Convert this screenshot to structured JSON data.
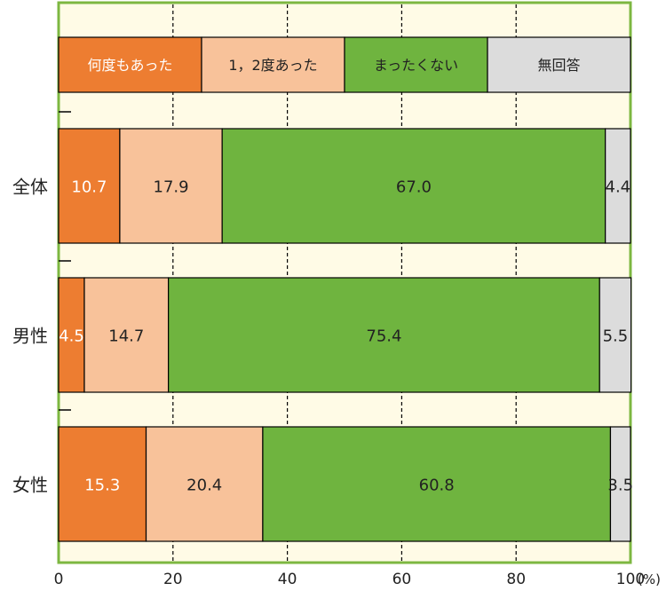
{
  "colors": {
    "plot_background": "#FFFBE6",
    "frame": "#7DB741",
    "gridline": "#000000",
    "bar_stroke": "#000000",
    "text_dark": "#222222",
    "text_light": "#FFFFFF"
  },
  "chart_data": {
    "type": "bar",
    "orientation": "horizontal",
    "stacked": true,
    "percent_scale": true,
    "xlim": [
      0,
      100
    ],
    "x_ticks": [
      0,
      20,
      40,
      60,
      80,
      100
    ],
    "x_tick_labels": [
      "0",
      "20",
      "40",
      "60",
      "80",
      "100"
    ],
    "x_unit_label": "(%)",
    "grid": "vertical dashed lines at 20, 40, 60, 80",
    "legend": {
      "placement": "top, inside plot, as a full-width stacked bar",
      "items": [
        {
          "label": "何度もあった",
          "color": "#ED7D31",
          "text_color": "#FFFFFF"
        },
        {
          "label": "1，2度あった",
          "color": "#F8C29A",
          "text_color": "#222222"
        },
        {
          "label": "まったくない",
          "color": "#6FB43F",
          "text_color": "#222222"
        },
        {
          "label": "無回答",
          "color": "#DCDCDC",
          "text_color": "#222222"
        }
      ]
    },
    "categories": [
      "全体",
      "男性",
      "女性"
    ],
    "series": [
      {
        "name": "何度もあった",
        "values": [
          10.7,
          4.5,
          15.3
        ],
        "labels": [
          "10.7",
          "4.5",
          "15.3"
        ]
      },
      {
        "name": "1，2度あった",
        "values": [
          17.9,
          14.7,
          20.4
        ],
        "labels": [
          "17.9",
          "14.7",
          "20.4"
        ]
      },
      {
        "name": "まったくない",
        "values": [
          67.0,
          75.4,
          60.8
        ],
        "labels": [
          "67.0",
          "75.4",
          "60.8"
        ]
      },
      {
        "name": "無回答",
        "values": [
          4.4,
          5.5,
          3.5
        ],
        "labels": [
          "4.4",
          "5.5",
          "3.5"
        ]
      }
    ]
  }
}
